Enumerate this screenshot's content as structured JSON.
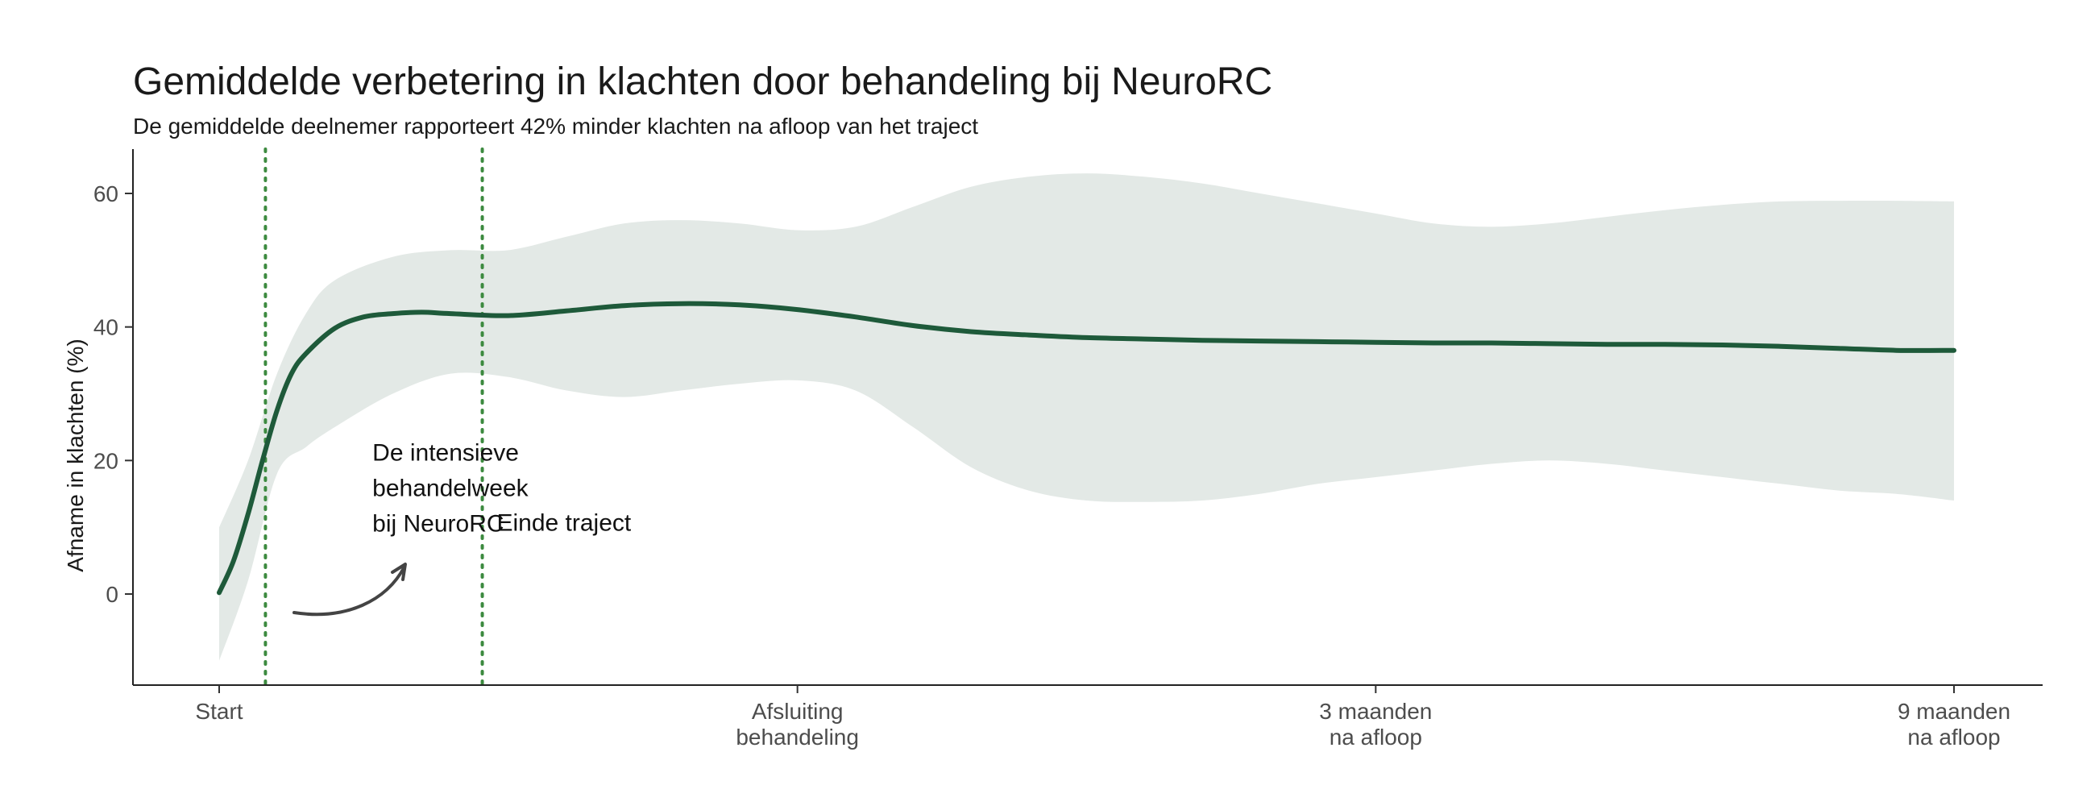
{
  "chart_data": {
    "type": "line",
    "title": "Gemiddelde verbetering in klachten door behandeling bij NeuroRC",
    "subtitle": "De gemiddelde deelnemer rapporteert 42% minder klachten na afloop van het traject",
    "ylabel": "Afname in klachten (%)",
    "xlabel": "",
    "x_ticks": [
      {
        "x": 0,
        "lines": [
          "Start"
        ]
      },
      {
        "x": 1,
        "lines": [
          "Afsluiting",
          "behandeling"
        ]
      },
      {
        "x": 2,
        "lines": [
          "3 maanden",
          "na afloop"
        ]
      },
      {
        "x": 3,
        "lines": [
          "9 maanden",
          "na afloop"
        ]
      }
    ],
    "y_ticks": [
      0,
      20,
      40,
      60
    ],
    "xlim": [
      -0.1,
      3.1
    ],
    "ylim": [
      -14,
      66
    ],
    "grid": false,
    "series": [
      {
        "color": "#1e5a3a",
        "x": [
          0,
          0.025,
          0.05,
          0.075,
          0.1,
          0.125,
          0.15,
          0.2,
          0.25,
          0.3,
          0.35,
          0.4,
          0.5,
          0.6,
          0.7,
          0.8,
          0.9,
          1.0,
          1.1,
          1.2,
          1.3,
          1.4,
          1.5,
          1.6,
          1.7,
          1.8,
          1.9,
          2.0,
          2.1,
          2.2,
          2.3,
          2.4,
          2.5,
          2.6,
          2.7,
          2.8,
          2.9,
          3.0
        ],
        "y": [
          0.2,
          5,
          12,
          20,
          27.5,
          33,
          36,
          39.8,
          41.5,
          42.0,
          42.2,
          42.0,
          41.7,
          42.4,
          43.2,
          43.5,
          43.3,
          42.6,
          41.5,
          40.2,
          39.3,
          38.8,
          38.4,
          38.2,
          38.0,
          37.9,
          37.8,
          37.7,
          37.6,
          37.6,
          37.5,
          37.4,
          37.4,
          37.3,
          37.1,
          36.8,
          36.5,
          36.5
        ]
      }
    ],
    "confidence_band": {
      "color": "#e3e9e6",
      "x": [
        0,
        0.05,
        0.1,
        0.15,
        0.2,
        0.3,
        0.4,
        0.5,
        0.6,
        0.7,
        0.8,
        0.9,
        1.0,
        1.1,
        1.2,
        1.3,
        1.4,
        1.5,
        1.6,
        1.7,
        1.8,
        1.9,
        2.0,
        2.1,
        2.2,
        2.3,
        2.4,
        2.5,
        2.6,
        2.7,
        2.8,
        2.9,
        3.0
      ],
      "lower": [
        -10,
        2,
        18,
        22,
        25,
        30,
        33,
        32.5,
        30.5,
        29.5,
        30.5,
        31.5,
        32.0,
        30.5,
        25.0,
        19.0,
        15.5,
        14.0,
        13.8,
        14.0,
        15.0,
        16.5,
        17.5,
        18.5,
        19.5,
        20.0,
        19.5,
        18.5,
        17.5,
        16.5,
        15.5,
        15.0,
        14.0
      ],
      "upper": [
        10,
        20,
        33,
        42,
        47,
        50.5,
        51.5,
        51.5,
        53.5,
        55.5,
        56.0,
        55.5,
        54.5,
        55.0,
        58.0,
        61.0,
        62.5,
        63.0,
        62.5,
        61.5,
        60.0,
        58.5,
        57.0,
        55.5,
        55.0,
        55.5,
        56.5,
        57.5,
        58.3,
        58.8,
        58.9,
        58.9,
        58.8
      ]
    },
    "reference_lines": [
      {
        "x": 0.08,
        "color": "#3c8a3f",
        "style": "dotted"
      },
      {
        "x": 0.455,
        "color": "#3c8a3f",
        "style": "dotted"
      }
    ],
    "annotations": [
      {
        "lines": [
          "De intensieve",
          "behandelweek",
          "bij NeuroRC"
        ],
        "x": 0.265,
        "y": 20.0
      },
      {
        "lines": [
          "Einde traject"
        ],
        "x": 0.48,
        "y": 9.5
      }
    ]
  }
}
